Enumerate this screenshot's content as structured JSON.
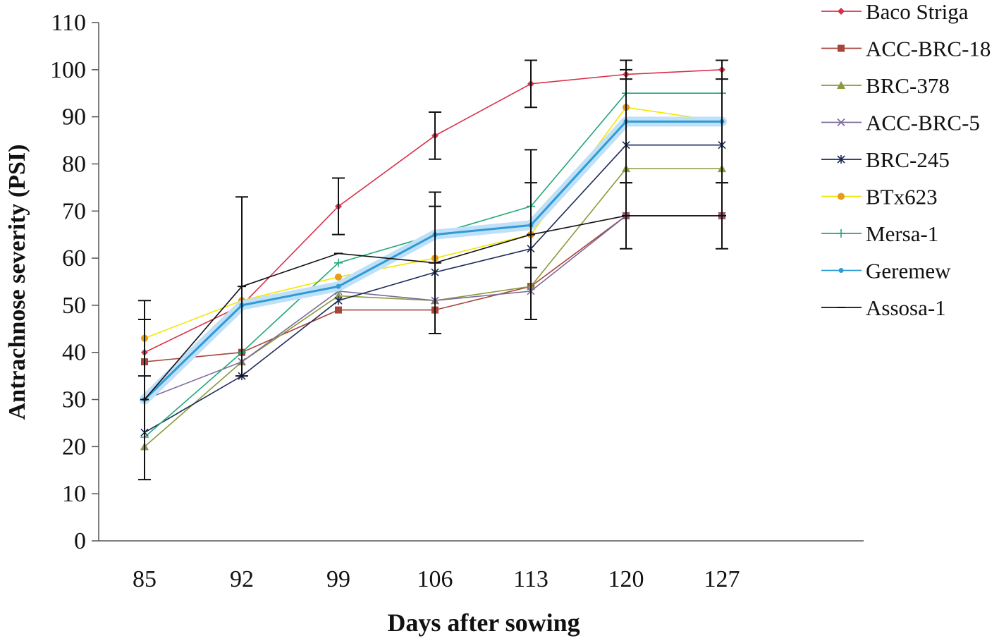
{
  "chart_data": {
    "type": "line",
    "title": "",
    "xlabel": "Days after sowing",
    "ylabel": "Antrachnose severity (PSI)",
    "x": [
      85,
      92,
      99,
      106,
      113,
      120,
      127
    ],
    "ylim": [
      0,
      110
    ],
    "yticks": [
      0,
      10,
      20,
      30,
      40,
      50,
      60,
      70,
      80,
      90,
      100,
      110
    ],
    "grid": false,
    "legend_position": "right",
    "series": [
      {
        "name": "Baco Striga",
        "color": "#d9304a",
        "marker": "diamond",
        "values": [
          40,
          50,
          71,
          86,
          97,
          99,
          100
        ],
        "errors": [
          0,
          0,
          6,
          5,
          5,
          1,
          2
        ]
      },
      {
        "name": "ACC-BRC-18",
        "color": "#a8453a",
        "marker": "square",
        "values": [
          38,
          40,
          49,
          49,
          54,
          69,
          69
        ],
        "errors": [
          0,
          0,
          0,
          0,
          0,
          0,
          0
        ]
      },
      {
        "name": "BRC-378",
        "color": "#8a9a3c",
        "marker": "triangle",
        "values": [
          20,
          38,
          52,
          51,
          54,
          79,
          79
        ],
        "errors": [
          0,
          0,
          0,
          0,
          0,
          0,
          0
        ]
      },
      {
        "name": "ACC-BRC-5",
        "color": "#7d6a9a",
        "marker": "x",
        "values": [
          30,
          38,
          53,
          51,
          53,
          69,
          69
        ],
        "errors": [
          0,
          0,
          0,
          0,
          0,
          0,
          0
        ]
      },
      {
        "name": "BRC-245",
        "color": "#1b2a5a",
        "marker": "star",
        "values": [
          23,
          35,
          51,
          57,
          62,
          84,
          84
        ],
        "errors": [
          0,
          0,
          0,
          0,
          0,
          0,
          0
        ]
      },
      {
        "name": "BTx623",
        "color": "#f2e600",
        "marker": "circle",
        "values": [
          43,
          51,
          56,
          60,
          65,
          92,
          89
        ],
        "errors": [
          8,
          0,
          0,
          0,
          0,
          0,
          0
        ]
      },
      {
        "name": "Mersa-1",
        "color": "#22a878",
        "marker": "plus",
        "values": [
          22,
          40,
          59,
          65,
          71,
          95,
          95
        ],
        "errors": [
          0,
          0,
          0,
          0,
          0,
          0,
          0
        ]
      },
      {
        "name": "Geremew",
        "color": "#2e9bd6",
        "marker": "dot",
        "values": [
          30,
          50,
          54,
          65,
          67,
          89,
          89
        ],
        "errors": [
          0,
          0,
          0,
          6,
          9,
          13,
          13
        ]
      },
      {
        "name": "Assosa-1",
        "color": "#111111",
        "marker": "dash",
        "values": [
          30,
          54,
          61,
          59,
          65,
          69,
          69
        ],
        "errors": [
          17,
          19,
          0,
          15,
          18,
          7,
          7
        ]
      }
    ]
  }
}
